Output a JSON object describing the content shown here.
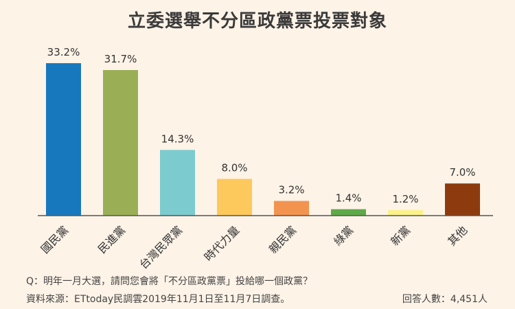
{
  "chart_data": {
    "type": "bar",
    "title": "立委選舉不分區政黨票投票對象",
    "categories": [
      "國民黨",
      "民進黨",
      "台灣民眾黨",
      "時代力量",
      "親民黨",
      "綠黨",
      "新黨",
      "其他"
    ],
    "values": [
      33.2,
      31.7,
      14.3,
      8.0,
      3.2,
      1.4,
      1.2,
      7.0
    ],
    "value_labels": [
      "33.2%",
      "31.7%",
      "14.3%",
      "8.0%",
      "3.2%",
      "1.4%",
      "1.2%",
      "7.0%"
    ],
    "colors": [
      "#1878bd",
      "#9aaf55",
      "#7ccbcf",
      "#fdc85c",
      "#f29450",
      "#5ea948",
      "#fbf28a",
      "#8d3b0e"
    ],
    "ylim": [
      0,
      33.2
    ],
    "grid": false,
    "xlabel": "",
    "ylabel": ""
  },
  "footer": {
    "question": "Q：明年一月大選，請問您會將「不分區政黨票」投給哪一個政黨？",
    "source": "資料來源：ETtoday民調雲2019年11月1日至11月7日調查。",
    "respondents": "回答人數：4,451人"
  }
}
